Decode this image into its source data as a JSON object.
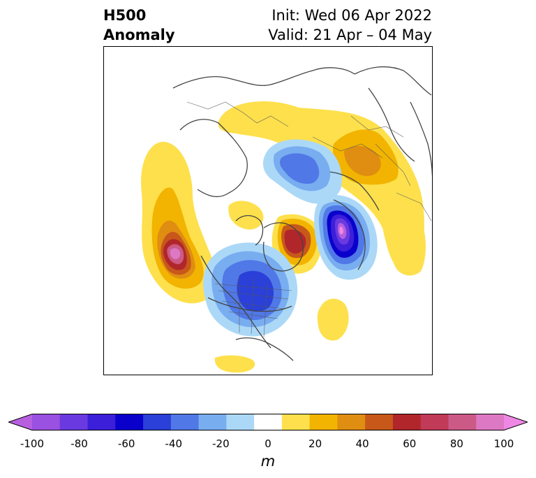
{
  "title": {
    "left_line1": "H500",
    "left_line2": "Anomaly",
    "init": "Init: Wed 06 Apr 2022",
    "valid": "Valid: 21 Apr – 04 May"
  },
  "colorbar": {
    "unit": "m",
    "ticks": [
      "-100",
      "-80",
      "-60",
      "-40",
      "-20",
      "0",
      "20",
      "40",
      "60",
      "80",
      "100"
    ],
    "colors": [
      "#b660e0",
      "#9a50e0",
      "#6a3ae0",
      "#3b1fd9",
      "#0a00cc",
      "#2a40d8",
      "#5078e6",
      "#78adf0",
      "#acd8f8",
      "#ffffff",
      "#fde04c",
      "#f2b400",
      "#df8e12",
      "#c7581a",
      "#b1262a",
      "#c13a58",
      "#cc5a86",
      "#dd78c4",
      "#ee88e4"
    ]
  }
}
